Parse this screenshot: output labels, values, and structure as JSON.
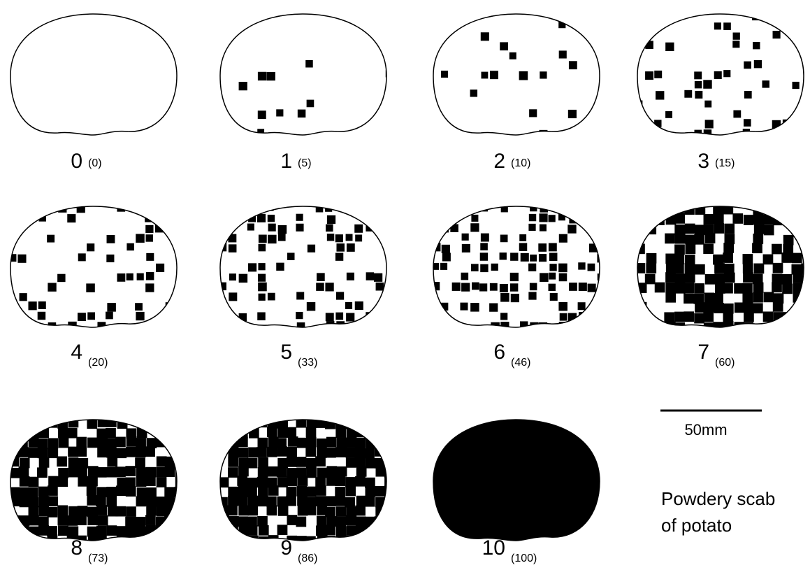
{
  "tubers": [
    {
      "score": "0",
      "percent": "(0)"
    },
    {
      "score": "1",
      "percent": "(5)"
    },
    {
      "score": "2",
      "percent": "(10)"
    },
    {
      "score": "3",
      "percent": "(15)"
    },
    {
      "score": "4",
      "percent": "(20)"
    },
    {
      "score": "5",
      "percent": "(33)"
    },
    {
      "score": "6",
      "percent": "(46)"
    },
    {
      "score": "7",
      "percent": "(60)"
    },
    {
      "score": "8",
      "percent": "(73)"
    },
    {
      "score": "9",
      "percent": "(86)"
    },
    {
      "score": "10",
      "percent": "(100)"
    }
  ],
  "scale_bar": {
    "label": "50mm"
  },
  "caption": {
    "lines": [
      "Powdery scab",
      "of potato"
    ]
  }
}
